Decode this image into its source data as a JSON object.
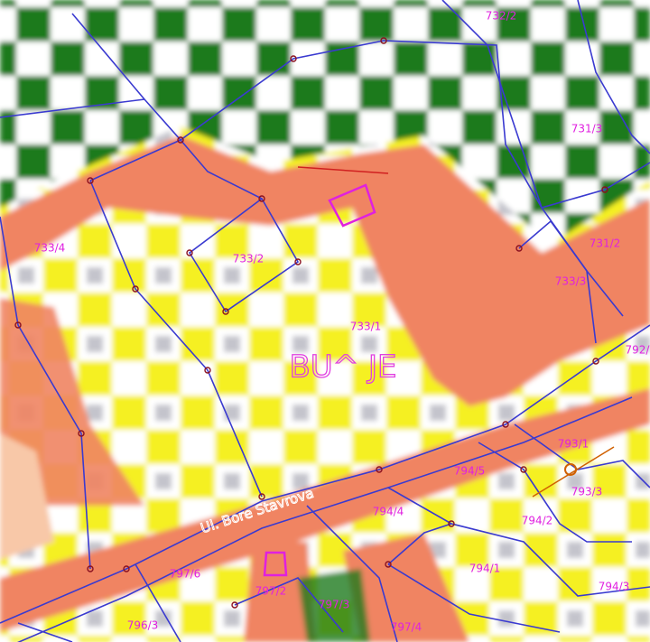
{
  "map": {
    "place": "BU^ JE",
    "street": "Ul. Bore Stavrova",
    "parcels": [
      "732/2",
      "731/3",
      "733/4",
      "733/2",
      "733/1",
      "731/2",
      "733/3",
      "793/1",
      "794/5",
      "793/3",
      "794/4",
      "794/2",
      "797/6",
      "797/2",
      "794/1",
      "794/3",
      "796/3",
      "797/3",
      "797/4",
      "792/"
    ]
  }
}
